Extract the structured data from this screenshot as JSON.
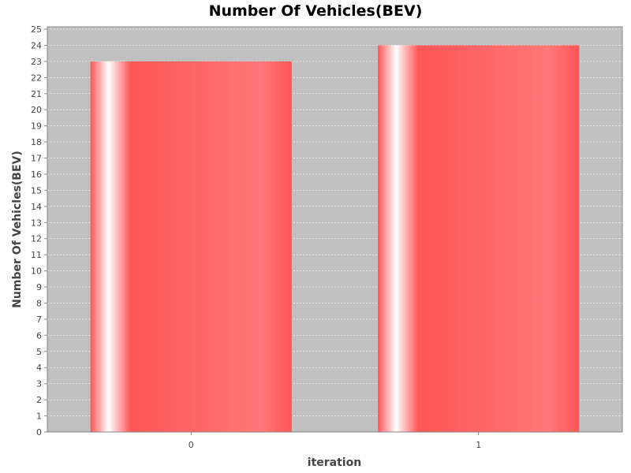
{
  "chart_data": {
    "type": "bar",
    "title": "Number Of Vehicles(BEV)",
    "xlabel": "iteration",
    "ylabel": "Number Of Vehicles(BEV)",
    "categories": [
      "0",
      "1"
    ],
    "values": [
      23,
      24
    ],
    "ylim": [
      0,
      25
    ],
    "yticks": [
      0,
      1,
      2,
      3,
      4,
      5,
      6,
      7,
      8,
      9,
      10,
      11,
      12,
      13,
      14,
      15,
      16,
      17,
      18,
      19,
      20,
      21,
      22,
      23,
      24,
      25
    ],
    "grid": true,
    "legend": "none",
    "colors": {
      "bar": "#ff5555",
      "bar_highlight": "#ffffff",
      "plot_background": "#c0c0c0",
      "gridline": "#ffffff",
      "axis": "#888888"
    }
  }
}
